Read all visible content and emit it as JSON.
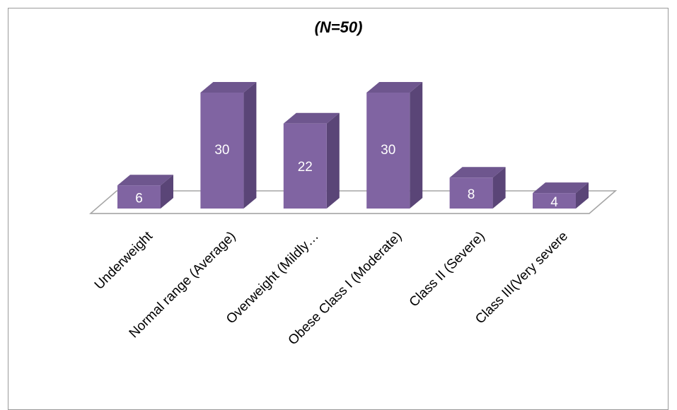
{
  "chart_data": {
    "type": "bar",
    "title": "(N=50)",
    "categories": [
      "Underweight",
      "Normal range (Average)",
      "Overweight (Mildly…",
      "Obese Class I    (Moderate)",
      "Class II (Severe)",
      "Class III(Very severe"
    ],
    "series": [
      {
        "values": [
          6,
          30,
          22,
          30,
          8,
          4
        ]
      }
    ],
    "xlabel": "",
    "ylabel": "",
    "ylim": [
      0,
      30
    ],
    "grid": false,
    "legend": "none",
    "data_labels": true,
    "style": "3d-column",
    "colors": {
      "front": "#8064a2",
      "side": "#5a4577",
      "top": "#6e568e",
      "floor": "#ffffff",
      "floor_stroke": "#a6a6a6",
      "label": "#ffffff"
    }
  }
}
